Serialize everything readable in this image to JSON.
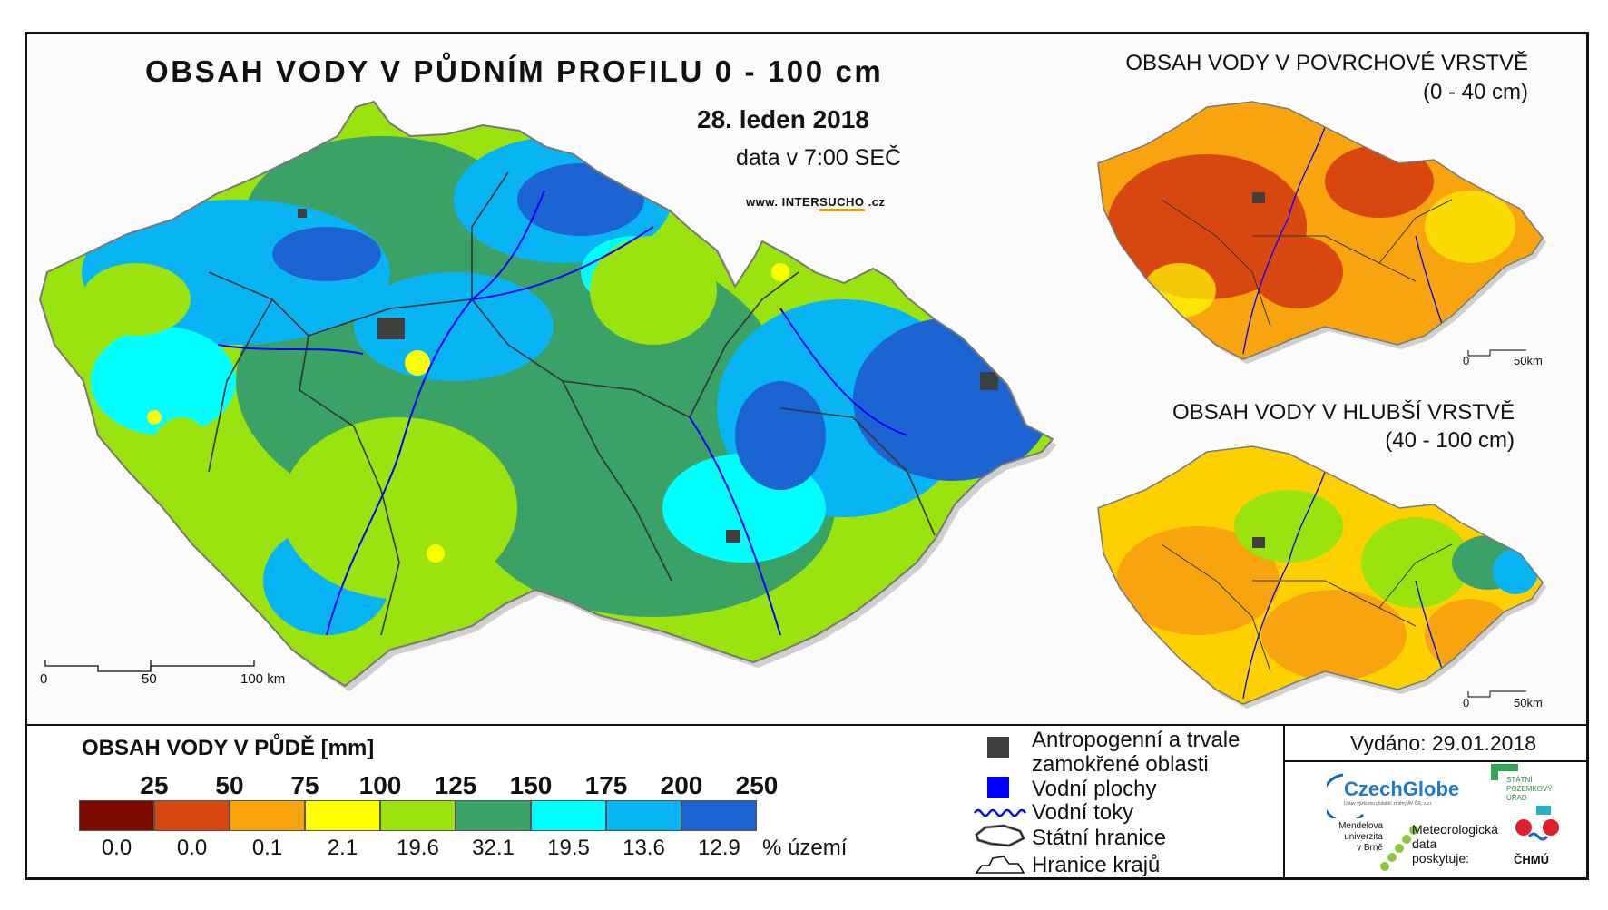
{
  "map_title": "OBSAH VODY V PŮDNÍM PROFILU 0 - 100 cm",
  "map_date": "28. leden 2018",
  "map_time": "data v 7:00 SEČ",
  "website": {
    "prefix": "www. INTER",
    "highlight": "SUCHO",
    "suffix": " .cz"
  },
  "scale_main": {
    "labels": [
      "0",
      "50",
      "100 km"
    ]
  },
  "inset_surface": {
    "title_line1": "OBSAH VODY V POVRCHOVÉ VRSTVĚ",
    "title_line2": "(0 - 40 cm)",
    "scale_labels": [
      "0",
      "50km"
    ]
  },
  "inset_deep": {
    "title_line1": "OBSAH VODY V HLUBŠÍ VRSTVĚ",
    "title_line2": "(40 - 100 cm)",
    "scale_labels": [
      "0",
      "50km"
    ]
  },
  "legend": {
    "title": "OBSAH VODY V PŮDĚ [mm]",
    "class_boundaries": [
      "25",
      "50",
      "75",
      "100",
      "125",
      "150",
      "175",
      "200",
      "250"
    ],
    "classes": [
      {
        "color": "#7b0a00",
        "percent": "0.0"
      },
      {
        "color": "#d8470f",
        "percent": "0.0"
      },
      {
        "color": "#f7a40f",
        "percent": "0.1"
      },
      {
        "color": "#ffff00",
        "percent": "2.1"
      },
      {
        "color": "#9be30e",
        "percent": "19.6"
      },
      {
        "color": "#3aa266",
        "percent": "32.1"
      },
      {
        "color": "#00ffff",
        "percent": "19.5"
      },
      {
        "color": "#09b4f5",
        "percent": "13.6"
      },
      {
        "color": "#1c64d2",
        "percent": "12.9"
      }
    ],
    "percent_unit": "% území"
  },
  "symbols": [
    {
      "icon": "dark-square-icon",
      "label": "Antropogenní a trvale zamokřené oblasti",
      "color": "#3f3f3f"
    },
    {
      "icon": "blue-square-icon",
      "label": "Vodní plochy",
      "color": "#0000ff"
    },
    {
      "icon": "wavy-line-icon",
      "label": "Vodní toky",
      "color": "#0000ff"
    },
    {
      "icon": "state-border-icon",
      "label": "Státní hranice"
    },
    {
      "icon": "region-border-icon",
      "label": "Hranice krajů"
    }
  ],
  "issued": "Vydáno: 29.01.2018",
  "logos": {
    "czechglobe": "CzechGlobe",
    "czechglobe_sub": "Ústav výzkumu globální změny AV ČR, v.v.i.",
    "spu": [
      "STÁTNÍ",
      "POZEMKOVÝ",
      "ÚŘAD"
    ],
    "mendel": [
      "Mendelova",
      "univerzita",
      "v Brně"
    ],
    "meteo": [
      "Meteorologická",
      "data",
      "poskytuje:"
    ],
    "chmu": "ČHMÚ"
  }
}
